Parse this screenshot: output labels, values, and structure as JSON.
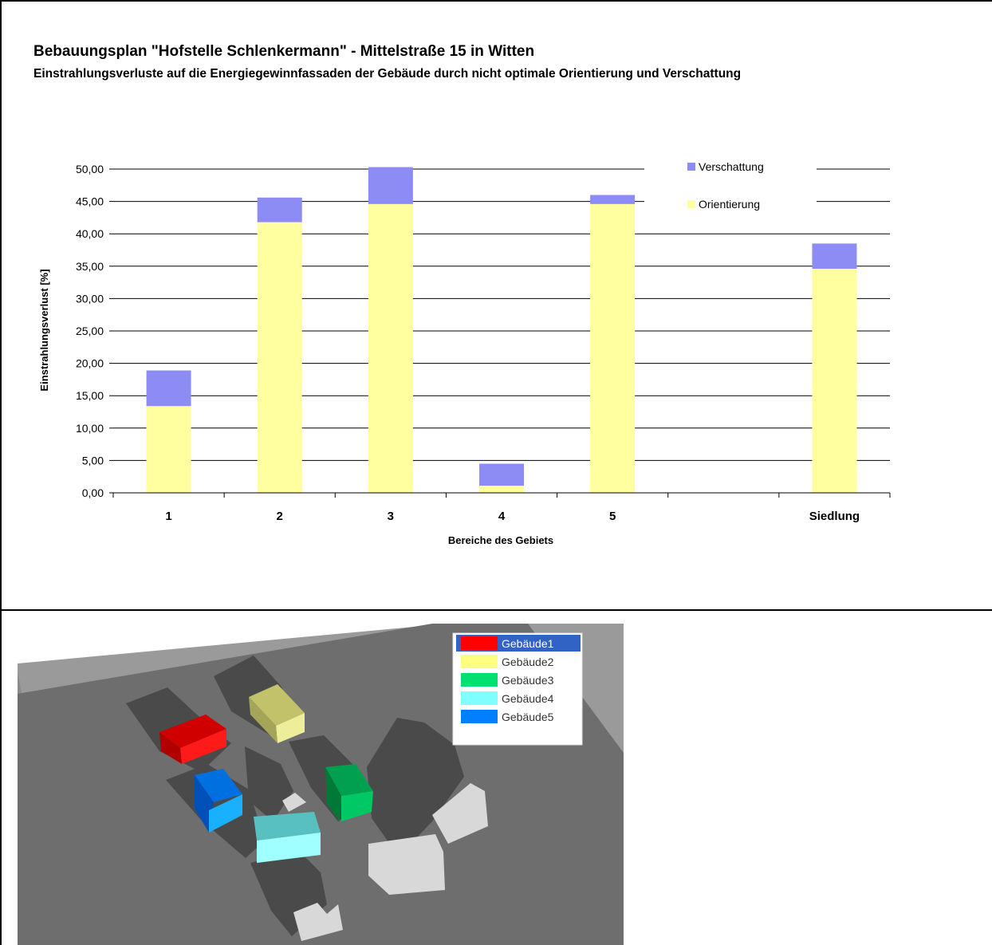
{
  "header": {
    "title": "Bebauungsplan \"Hofstelle Schlenkermann\" - Mittelstraße 15 in Witten",
    "subtitle": "Einstrahlungsverluste auf die Energiegewinnfassaden der Gebäude durch nicht optimale Orientierung und Verschattung"
  },
  "chart_data": {
    "type": "bar",
    "stacked": true,
    "title": "Bebauungsplan \"Hofstelle Schlenkermann\" - Mittelstraße 15 in Witten",
    "subtitle": "Einstrahlungsverluste auf die Energiegewinnfassaden der Gebäude durch nicht optimale Orientierung und Verschattung",
    "xlabel": "Bereiche des Gebiets",
    "ylabel": "Einstrahlungsverlust [%]",
    "ylim": [
      0,
      50
    ],
    "yticks": [
      "0,00",
      "5,00",
      "10,00",
      "15,00",
      "20,00",
      "25,00",
      "30,00",
      "35,00",
      "40,00",
      "45,00",
      "50,00"
    ],
    "categories": [
      "1",
      "2",
      "3",
      "4",
      "5",
      "",
      "Siedlung"
    ],
    "series": [
      {
        "name": "Orientierung",
        "color": "#ffffa0",
        "values": [
          13.4,
          41.8,
          44.6,
          1.1,
          44.6,
          0,
          34.6
        ]
      },
      {
        "name": "Verschattung",
        "color": "#8c8cf4",
        "values": [
          5.5,
          3.8,
          5.7,
          3.4,
          1.4,
          0,
          3.9
        ]
      }
    ],
    "legend": {
      "position": "top-right",
      "entries": [
        "Verschattung",
        "Orientierung"
      ]
    },
    "grid": true
  },
  "scene": {
    "legend": [
      {
        "label": "Gebäude1",
        "color": "#ff0000",
        "selected": true
      },
      {
        "label": "Gebäude2",
        "color": "#ffff80"
      },
      {
        "label": "Gebäude3",
        "color": "#00e070"
      },
      {
        "label": "Gebäude4",
        "color": "#80ffff"
      },
      {
        "label": "Gebäude5",
        "color": "#0080ff"
      }
    ],
    "selection_color": "#3163c5"
  }
}
